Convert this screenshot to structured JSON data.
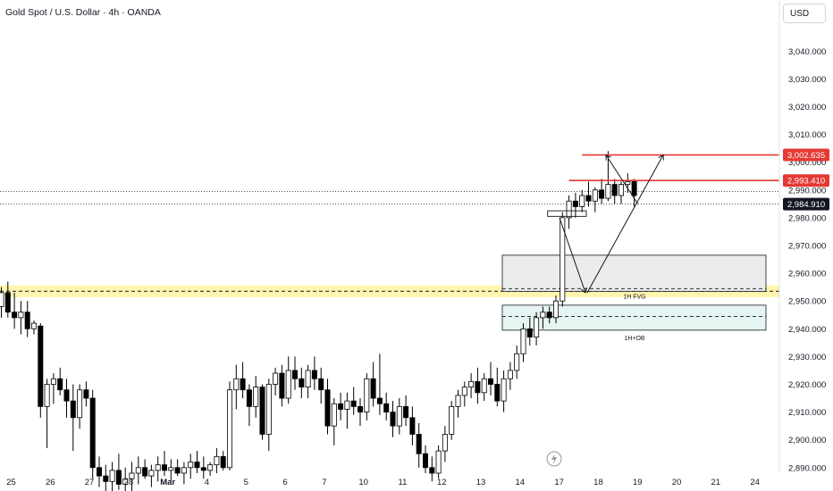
{
  "header": {
    "title": "Gold Spot / U.S. Dollar · 4h · OANDA",
    "currency": "USD"
  },
  "colors": {
    "bull_body": "#ffffff",
    "bear_body": "#000000",
    "candle_border": "#000000",
    "level_line": "#e53935",
    "tag_red": "#e53935",
    "tag_dark": "#131722",
    "yellow_band": "#fff3a0",
    "fvg_fill": "#ececec",
    "ob_fill": "#e6f4f2"
  },
  "chart_data": {
    "type": "candlestick",
    "symbol": "XAUUSD",
    "timeframe": "4h",
    "ylim": [
      2888,
      3052
    ],
    "y_ticks": [
      "2,890.000",
      "2,900.000",
      "2,910.000",
      "2,920.000",
      "2,930.000",
      "2,940.000",
      "2,950.000",
      "2,960.000",
      "2,970.000",
      "2,980.000",
      "2,990.000",
      "3,000.000",
      "3,010.000",
      "3,020.000",
      "3,030.000",
      "3,040.000"
    ],
    "y_tick_values": [
      2890,
      2900,
      2910,
      2920,
      2930,
      2940,
      2950,
      2960,
      2970,
      2980,
      2990,
      3000,
      3010,
      3020,
      3030,
      3040
    ],
    "x_tick_labels": [
      "25",
      "26",
      "27",
      "28",
      "Mar",
      "4",
      "5",
      "6",
      "7",
      "10",
      "11",
      "12",
      "13",
      "14",
      "17",
      "18",
      "19",
      "20",
      "21",
      "24"
    ],
    "x_tick_index": [
      1.5,
      7.5,
      13.5,
      19.5,
      25.5,
      31.5,
      37.5,
      43.5,
      49.5,
      55.5,
      61.5,
      67.5,
      73.5,
      79.5,
      85.5,
      91.5,
      97.5,
      103.5,
      109.5,
      115.5
    ],
    "candles": [
      [
        2948,
        2955,
        2944,
        2953
      ],
      [
        2953,
        2957,
        2944,
        2946
      ],
      [
        2946,
        2953,
        2940,
        2944
      ],
      [
        2944,
        2950,
        2938,
        2946
      ],
      [
        2946,
        2950,
        2937,
        2940
      ],
      [
        2940,
        2943,
        2938,
        2942
      ],
      [
        2941,
        2942,
        2908,
        2912
      ],
      [
        2912,
        2922,
        2897,
        2920
      ],
      [
        2920,
        2924,
        2913,
        2922
      ],
      [
        2922,
        2926,
        2916,
        2918
      ],
      [
        2918,
        2922,
        2908,
        2914
      ],
      [
        2914,
        2920,
        2896,
        2908
      ],
      [
        2908,
        2920,
        2904,
        2918
      ],
      [
        2918,
        2921,
        2912,
        2915
      ],
      [
        2915,
        2918,
        2886,
        2890
      ],
      [
        2890,
        2894,
        2883,
        2887
      ],
      [
        2887,
        2891,
        2880,
        2885
      ],
      [
        2885,
        2892,
        2878,
        2889
      ],
      [
        2889,
        2895,
        2882,
        2884
      ],
      [
        2884,
        2890,
        2878,
        2886
      ],
      [
        2886,
        2892,
        2880,
        2888
      ],
      [
        2888,
        2894,
        2884,
        2890
      ],
      [
        2890,
        2893,
        2886,
        2887
      ],
      [
        2887,
        2891,
        2883,
        2889
      ],
      [
        2889,
        2894,
        2885,
        2891
      ],
      [
        2891,
        2896,
        2887,
        2889
      ],
      [
        2889,
        2893,
        2885,
        2890
      ],
      [
        2890,
        2893,
        2887,
        2888
      ],
      [
        2888,
        2892,
        2884,
        2890
      ],
      [
        2890,
        2895,
        2886,
        2892
      ],
      [
        2892,
        2896,
        2888,
        2890
      ],
      [
        2890,
        2894,
        2886,
        2889
      ],
      [
        2889,
        2892,
        2887,
        2891
      ],
      [
        2891,
        2897,
        2888,
        2894
      ],
      [
        2894,
        2896,
        2889,
        2890
      ],
      [
        2890,
        2921,
        2889,
        2918
      ],
      [
        2918,
        2927,
        2911,
        2922
      ],
      [
        2922,
        2928,
        2915,
        2918
      ],
      [
        2918,
        2920,
        2905,
        2912
      ],
      [
        2912,
        2923,
        2908,
        2919
      ],
      [
        2919,
        2920,
        2900,
        2902
      ],
      [
        2902,
        2922,
        2896,
        2920
      ],
      [
        2920,
        2926,
        2916,
        2924
      ],
      [
        2924,
        2927,
        2912,
        2915
      ],
      [
        2915,
        2930,
        2913,
        2925
      ],
      [
        2925,
        2930,
        2918,
        2922
      ],
      [
        2922,
        2926,
        2915,
        2919
      ],
      [
        2919,
        2927,
        2915,
        2925
      ],
      [
        2925,
        2930,
        2918,
        2922
      ],
      [
        2922,
        2926,
        2913,
        2918
      ],
      [
        2918,
        2922,
        2902,
        2905
      ],
      [
        2905,
        2915,
        2898,
        2913
      ],
      [
        2913,
        2917,
        2907,
        2911
      ],
      [
        2911,
        2917,
        2904,
        2914
      ],
      [
        2914,
        2919,
        2909,
        2912
      ],
      [
        2912,
        2915,
        2905,
        2910
      ],
      [
        2910,
        2924,
        2907,
        2922
      ],
      [
        2922,
        2928,
        2912,
        2915
      ],
      [
        2915,
        2931,
        2909,
        2913
      ],
      [
        2913,
        2917,
        2907,
        2910
      ],
      [
        2910,
        2914,
        2901,
        2905
      ],
      [
        2905,
        2915,
        2902,
        2912
      ],
      [
        2912,
        2916,
        2905,
        2908
      ],
      [
        2908,
        2912,
        2898,
        2902
      ],
      [
        2902,
        2906,
        2890,
        2895
      ],
      [
        2895,
        2898,
        2888,
        2890
      ],
      [
        2890,
        2894,
        2885,
        2888
      ],
      [
        2888,
        2898,
        2886,
        2896
      ],
      [
        2896,
        2905,
        2892,
        2902
      ],
      [
        2902,
        2914,
        2900,
        2912
      ],
      [
        2912,
        2918,
        2908,
        2916
      ],
      [
        2916,
        2921,
        2912,
        2919
      ],
      [
        2919,
        2924,
        2915,
        2921
      ],
      [
        2921,
        2926,
        2913,
        2917
      ],
      [
        2917,
        2924,
        2914,
        2922
      ],
      [
        2922,
        2928,
        2916,
        2920
      ],
      [
        2920,
        2926,
        2912,
        2914
      ],
      [
        2914,
        2925,
        2910,
        2922
      ],
      [
        2922,
        2928,
        2918,
        2925
      ],
      [
        2925,
        2934,
        2922,
        2931
      ],
      [
        2931,
        2942,
        2928,
        2940
      ],
      [
        2940,
        2944,
        2934,
        2937
      ],
      [
        2937,
        2946,
        2934,
        2944
      ],
      [
        2944,
        2948,
        2940,
        2946
      ],
      [
        2946,
        2948,
        2942,
        2944
      ],
      [
        2944,
        2952,
        2942,
        2950
      ],
      [
        2950,
        2982,
        2948,
        2980
      ],
      [
        2980,
        2988,
        2976,
        2986
      ],
      [
        2986,
        2989,
        2980,
        2984
      ],
      [
        2984,
        2990,
        2982,
        2988
      ],
      [
        2988,
        2993,
        2984,
        2986
      ],
      [
        2986,
        2991,
        2982,
        2990
      ],
      [
        2990,
        2994,
        2985,
        2987
      ],
      [
        2987,
        3004,
        2986,
        2992
      ],
      [
        2992,
        2994,
        2985,
        2988
      ],
      [
        2988,
        2993,
        2985,
        2992
      ],
      [
        2992,
        2996,
        2989,
        2993
      ],
      [
        2993,
        2994,
        2984,
        2988
      ]
    ],
    "horizontal_levels": [
      {
        "price": 3002.635,
        "label": "3,002.635",
        "style": "red-tag"
      },
      {
        "price": 2993.41,
        "label": "2,993.410",
        "style": "red-tag"
      },
      {
        "price": 2984.91,
        "label": "2,984.910",
        "style": "dark-tag"
      }
    ],
    "zones": [
      {
        "name": "1H FVG",
        "top": 2966.5,
        "bottom": 2953.5
      },
      {
        "name": "1H+OB",
        "top": 2948.5,
        "bottom": 2939.5
      },
      {
        "name": "",
        "top": 2955,
        "bottom": 2952,
        "kind": "yellow-band"
      }
    ]
  }
}
